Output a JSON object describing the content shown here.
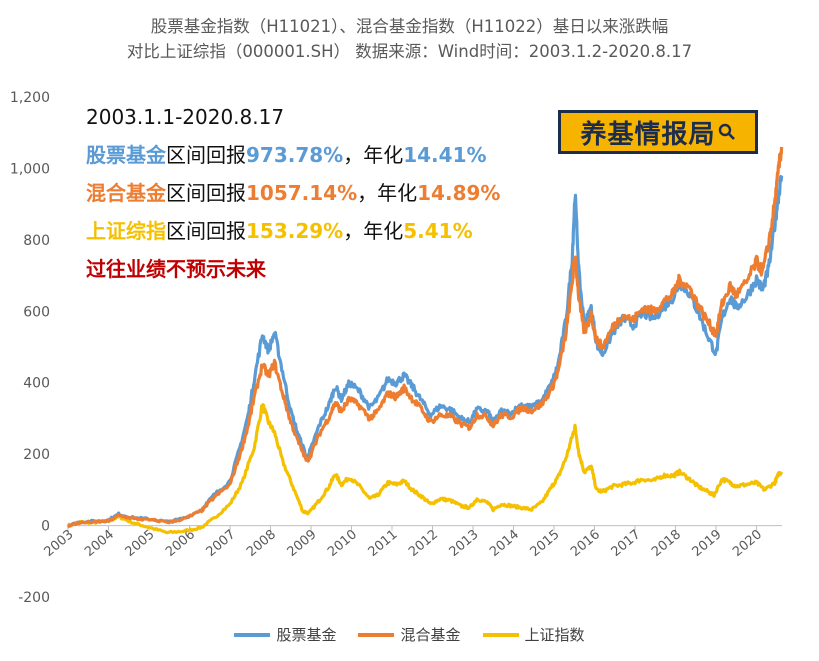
{
  "title": {
    "line1": "股票基金指数（H11021）、混合基金指数（H11022）基日以来涨跌幅",
    "line2": "对比上证综指（000001.SH） 数据来源：Wind时间：2003.1.2-2020.8.17"
  },
  "annotation": {
    "period": "2003.1.1-2020.8.17",
    "rows": [
      {
        "name": "股票基金",
        "t1": "区间回报",
        "ret": "973.78%",
        "t2": "，年化",
        "ann": "14.41%",
        "color": "#5b9bd5"
      },
      {
        "name": "混合基金",
        "t1": "区间回报",
        "ret": "1057.14%",
        "t2": "，年化",
        "ann": "14.89%",
        "color": "#ed7d31"
      },
      {
        "name": "上证综指",
        "t1": "区间回报",
        "ret": "153.29%",
        "t2": "，年化",
        "ann": "5.41%",
        "color": "#f5c000"
      }
    ],
    "warning": "过往业绩不预示未来"
  },
  "logo": {
    "text": "养基情报局",
    "icon": "magnifier-icon"
  },
  "chart_data": {
    "type": "line",
    "xlabel": "",
    "ylabel": "",
    "ylim": [
      -200,
      1200
    ],
    "yticks": [
      -200,
      0,
      200,
      400,
      600,
      800,
      1000,
      1200
    ],
    "ytick_labels": [
      "-200",
      "0",
      "200",
      "400",
      "600",
      "800",
      "1,000",
      "1,200"
    ],
    "xlim": [
      2003.0,
      2020.63
    ],
    "xticks": [
      2003,
      2004,
      2005,
      2006,
      2007,
      2008,
      2009,
      2010,
      2011,
      2012,
      2013,
      2014,
      2015,
      2016,
      2017,
      2018,
      2019,
      2020
    ],
    "grid": false,
    "legend_position": "bottom",
    "series": [
      {
        "name": "股票基金",
        "color": "#5b9bd5",
        "points": [
          [
            2003.0,
            0
          ],
          [
            2003.3,
            10
          ],
          [
            2003.7,
            12
          ],
          [
            2004.0,
            15
          ],
          [
            2004.25,
            32
          ],
          [
            2004.6,
            22
          ],
          [
            2005.0,
            18
          ],
          [
            2005.5,
            10
          ],
          [
            2005.9,
            22
          ],
          [
            2006.3,
            45
          ],
          [
            2006.6,
            85
          ],
          [
            2007.0,
            125
          ],
          [
            2007.25,
            220
          ],
          [
            2007.45,
            310
          ],
          [
            2007.6,
            410
          ],
          [
            2007.8,
            535
          ],
          [
            2007.95,
            490
          ],
          [
            2008.1,
            540
          ],
          [
            2008.3,
            430
          ],
          [
            2008.5,
            320
          ],
          [
            2008.7,
            250
          ],
          [
            2008.9,
            190
          ],
          [
            2009.0,
            215
          ],
          [
            2009.2,
            280
          ],
          [
            2009.45,
            340
          ],
          [
            2009.6,
            390
          ],
          [
            2009.75,
            355
          ],
          [
            2009.95,
            400
          ],
          [
            2010.2,
            375
          ],
          [
            2010.45,
            330
          ],
          [
            2010.65,
            355
          ],
          [
            2010.9,
            410
          ],
          [
            2011.1,
            400
          ],
          [
            2011.3,
            420
          ],
          [
            2011.5,
            390
          ],
          [
            2011.7,
            355
          ],
          [
            2011.95,
            310
          ],
          [
            2012.2,
            335
          ],
          [
            2012.45,
            325
          ],
          [
            2012.7,
            300
          ],
          [
            2012.92,
            290
          ],
          [
            2013.1,
            325
          ],
          [
            2013.35,
            320
          ],
          [
            2013.5,
            290
          ],
          [
            2013.7,
            320
          ],
          [
            2013.95,
            315
          ],
          [
            2014.2,
            340
          ],
          [
            2014.45,
            330
          ],
          [
            2014.7,
            350
          ],
          [
            2014.95,
            400
          ],
          [
            2015.1,
            450
          ],
          [
            2015.3,
            580
          ],
          [
            2015.45,
            750
          ],
          [
            2015.52,
            930
          ],
          [
            2015.62,
            700
          ],
          [
            2015.75,
            560
          ],
          [
            2015.92,
            610
          ],
          [
            2016.05,
            510
          ],
          [
            2016.2,
            480
          ],
          [
            2016.45,
            540
          ],
          [
            2016.7,
            580
          ],
          [
            2016.95,
            560
          ],
          [
            2017.2,
            595
          ],
          [
            2017.45,
            580
          ],
          [
            2017.7,
            610
          ],
          [
            2017.95,
            640
          ],
          [
            2018.1,
            680
          ],
          [
            2018.35,
            650
          ],
          [
            2018.55,
            600
          ],
          [
            2018.8,
            530
          ],
          [
            2019.0,
            480
          ],
          [
            2019.15,
            580
          ],
          [
            2019.35,
            640
          ],
          [
            2019.5,
            610
          ],
          [
            2019.75,
            640
          ],
          [
            2020.0,
            690
          ],
          [
            2020.15,
            660
          ],
          [
            2020.3,
            720
          ],
          [
            2020.45,
            840
          ],
          [
            2020.55,
            930
          ],
          [
            2020.62,
            980
          ]
        ]
      },
      {
        "name": "混合基金",
        "color": "#ed7d31",
        "points": [
          [
            2003.0,
            0
          ],
          [
            2003.3,
            8
          ],
          [
            2003.7,
            10
          ],
          [
            2004.0,
            13
          ],
          [
            2004.25,
            28
          ],
          [
            2004.6,
            20
          ],
          [
            2005.0,
            16
          ],
          [
            2005.5,
            10
          ],
          [
            2005.9,
            20
          ],
          [
            2006.3,
            42
          ],
          [
            2006.6,
            78
          ],
          [
            2007.0,
            115
          ],
          [
            2007.25,
            200
          ],
          [
            2007.45,
            280
          ],
          [
            2007.6,
            360
          ],
          [
            2007.8,
            450
          ],
          [
            2007.95,
            420
          ],
          [
            2008.1,
            455
          ],
          [
            2008.3,
            370
          ],
          [
            2008.5,
            290
          ],
          [
            2008.7,
            230
          ],
          [
            2008.9,
            180
          ],
          [
            2009.0,
            200
          ],
          [
            2009.2,
            255
          ],
          [
            2009.45,
            305
          ],
          [
            2009.6,
            345
          ],
          [
            2009.75,
            320
          ],
          [
            2009.95,
            355
          ],
          [
            2010.2,
            335
          ],
          [
            2010.45,
            300
          ],
          [
            2010.65,
            320
          ],
          [
            2010.9,
            370
          ],
          [
            2011.1,
            360
          ],
          [
            2011.3,
            385
          ],
          [
            2011.5,
            355
          ],
          [
            2011.7,
            330
          ],
          [
            2011.95,
            290
          ],
          [
            2012.2,
            310
          ],
          [
            2012.45,
            305
          ],
          [
            2012.7,
            285
          ],
          [
            2012.92,
            275
          ],
          [
            2013.1,
            310
          ],
          [
            2013.35,
            305
          ],
          [
            2013.5,
            280
          ],
          [
            2013.7,
            310
          ],
          [
            2013.95,
            305
          ],
          [
            2014.2,
            330
          ],
          [
            2014.45,
            322
          ],
          [
            2014.7,
            340
          ],
          [
            2014.95,
            385
          ],
          [
            2015.1,
            430
          ],
          [
            2015.3,
            540
          ],
          [
            2015.45,
            680
          ],
          [
            2015.52,
            760
          ],
          [
            2015.62,
            630
          ],
          [
            2015.75,
            540
          ],
          [
            2015.92,
            590
          ],
          [
            2016.05,
            520
          ],
          [
            2016.2,
            500
          ],
          [
            2016.45,
            555
          ],
          [
            2016.7,
            590
          ],
          [
            2016.95,
            575
          ],
          [
            2017.2,
            610
          ],
          [
            2017.45,
            600
          ],
          [
            2017.7,
            625
          ],
          [
            2017.95,
            650
          ],
          [
            2018.1,
            690
          ],
          [
            2018.35,
            665
          ],
          [
            2018.55,
            620
          ],
          [
            2018.8,
            570
          ],
          [
            2019.0,
            535
          ],
          [
            2019.15,
            620
          ],
          [
            2019.35,
            670
          ],
          [
            2019.5,
            645
          ],
          [
            2019.75,
            680
          ],
          [
            2020.0,
            740
          ],
          [
            2020.15,
            710
          ],
          [
            2020.3,
            790
          ],
          [
            2020.45,
            900
          ],
          [
            2020.55,
            1000
          ],
          [
            2020.62,
            1060
          ]
        ]
      },
      {
        "name": "上证指数",
        "color": "#f5c000",
        "points": [
          [
            2003.0,
            0
          ],
          [
            2003.3,
            10
          ],
          [
            2003.6,
            8
          ],
          [
            2004.0,
            12
          ],
          [
            2004.25,
            25
          ],
          [
            2004.6,
            8
          ],
          [
            2005.0,
            -5
          ],
          [
            2005.45,
            -20
          ],
          [
            2005.9,
            -15
          ],
          [
            2006.3,
            -5
          ],
          [
            2006.6,
            20
          ],
          [
            2007.0,
            60
          ],
          [
            2007.3,
            120
          ],
          [
            2007.6,
            220
          ],
          [
            2007.8,
            340
          ],
          [
            2007.95,
            290
          ],
          [
            2008.1,
            260
          ],
          [
            2008.3,
            180
          ],
          [
            2008.55,
            110
          ],
          [
            2008.8,
            40
          ],
          [
            2008.95,
            35
          ],
          [
            2009.2,
            70
          ],
          [
            2009.45,
            110
          ],
          [
            2009.6,
            145
          ],
          [
            2009.75,
            115
          ],
          [
            2009.95,
            135
          ],
          [
            2010.2,
            110
          ],
          [
            2010.45,
            75
          ],
          [
            2010.65,
            85
          ],
          [
            2010.9,
            120
          ],
          [
            2011.1,
            115
          ],
          [
            2011.3,
            125
          ],
          [
            2011.5,
            100
          ],
          [
            2011.75,
            80
          ],
          [
            2011.95,
            60
          ],
          [
            2012.2,
            75
          ],
          [
            2012.45,
            70
          ],
          [
            2012.7,
            55
          ],
          [
            2012.92,
            50
          ],
          [
            2013.1,
            75
          ],
          [
            2013.35,
            65
          ],
          [
            2013.5,
            45
          ],
          [
            2013.7,
            60
          ],
          [
            2013.95,
            55
          ],
          [
            2014.2,
            50
          ],
          [
            2014.45,
            45
          ],
          [
            2014.7,
            65
          ],
          [
            2014.95,
            110
          ],
          [
            2015.1,
            135
          ],
          [
            2015.3,
            190
          ],
          [
            2015.45,
            250
          ],
          [
            2015.52,
            275
          ],
          [
            2015.62,
            200
          ],
          [
            2015.75,
            150
          ],
          [
            2015.92,
            165
          ],
          [
            2016.05,
            100
          ],
          [
            2016.2,
            95
          ],
          [
            2016.45,
            110
          ],
          [
            2016.7,
            115
          ],
          [
            2016.95,
            120
          ],
          [
            2017.2,
            130
          ],
          [
            2017.45,
            125
          ],
          [
            2017.7,
            140
          ],
          [
            2017.95,
            140
          ],
          [
            2018.1,
            150
          ],
          [
            2018.35,
            130
          ],
          [
            2018.55,
            110
          ],
          [
            2018.8,
            95
          ],
          [
            2018.95,
            85
          ],
          [
            2019.15,
            130
          ],
          [
            2019.35,
            120
          ],
          [
            2019.5,
            110
          ],
          [
            2019.75,
            115
          ],
          [
            2020.0,
            120
          ],
          [
            2020.2,
            100
          ],
          [
            2020.45,
            120
          ],
          [
            2020.55,
            145
          ],
          [
            2020.62,
            150
          ]
        ]
      }
    ]
  }
}
